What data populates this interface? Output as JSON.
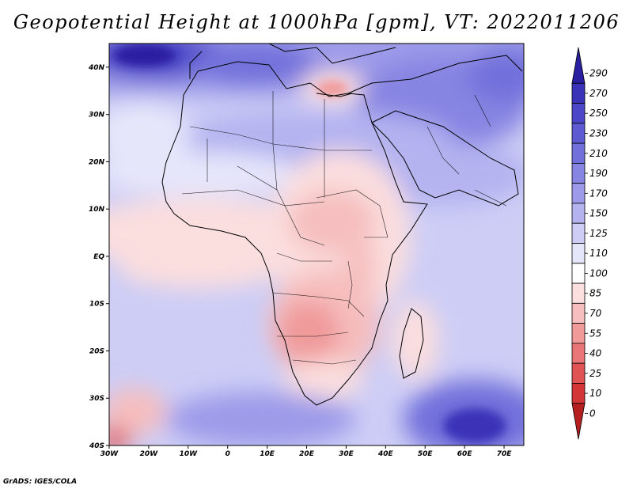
{
  "title": "Geopotential Height at 1000hPa [gpm], VT: 2022011206",
  "credit": "GrADS: IGES/COLA",
  "map": {
    "region": "Africa and Middle East",
    "variable": "Geopotential Height at 1000hPa",
    "units": "gpm",
    "valid_time": "2022011206",
    "lon_range": [
      -30,
      75
    ],
    "lat_range": [
      -40,
      45
    ],
    "lon_ticks": [
      "30W",
      "20W",
      "10W",
      "0",
      "10E",
      "20E",
      "30E",
      "40E",
      "50E",
      "60E",
      "70E"
    ],
    "lat_ticks": [
      "40N",
      "30N",
      "20N",
      "10N",
      "EQ",
      "10S",
      "20S",
      "30S",
      "40S"
    ]
  },
  "colorbar": {
    "levels": [
      "290",
      "270",
      "250",
      "230",
      "210",
      "190",
      "170",
      "150",
      "125",
      "110",
      "100",
      "85",
      "70",
      "55",
      "40",
      "25",
      "10",
      "0"
    ],
    "colors": [
      "#2a1fa0",
      "#3a33b8",
      "#4c46c8",
      "#5e5ad2",
      "#7271db",
      "#8785e2",
      "#9d9be9",
      "#b4b3f0",
      "#cdcdf6",
      "#e6e6fb",
      "#ffffff",
      "#fbdede",
      "#f6bebe",
      "#f09a9a",
      "#e87676",
      "#e05454",
      "#d33636",
      "#b51f1f"
    ]
  }
}
